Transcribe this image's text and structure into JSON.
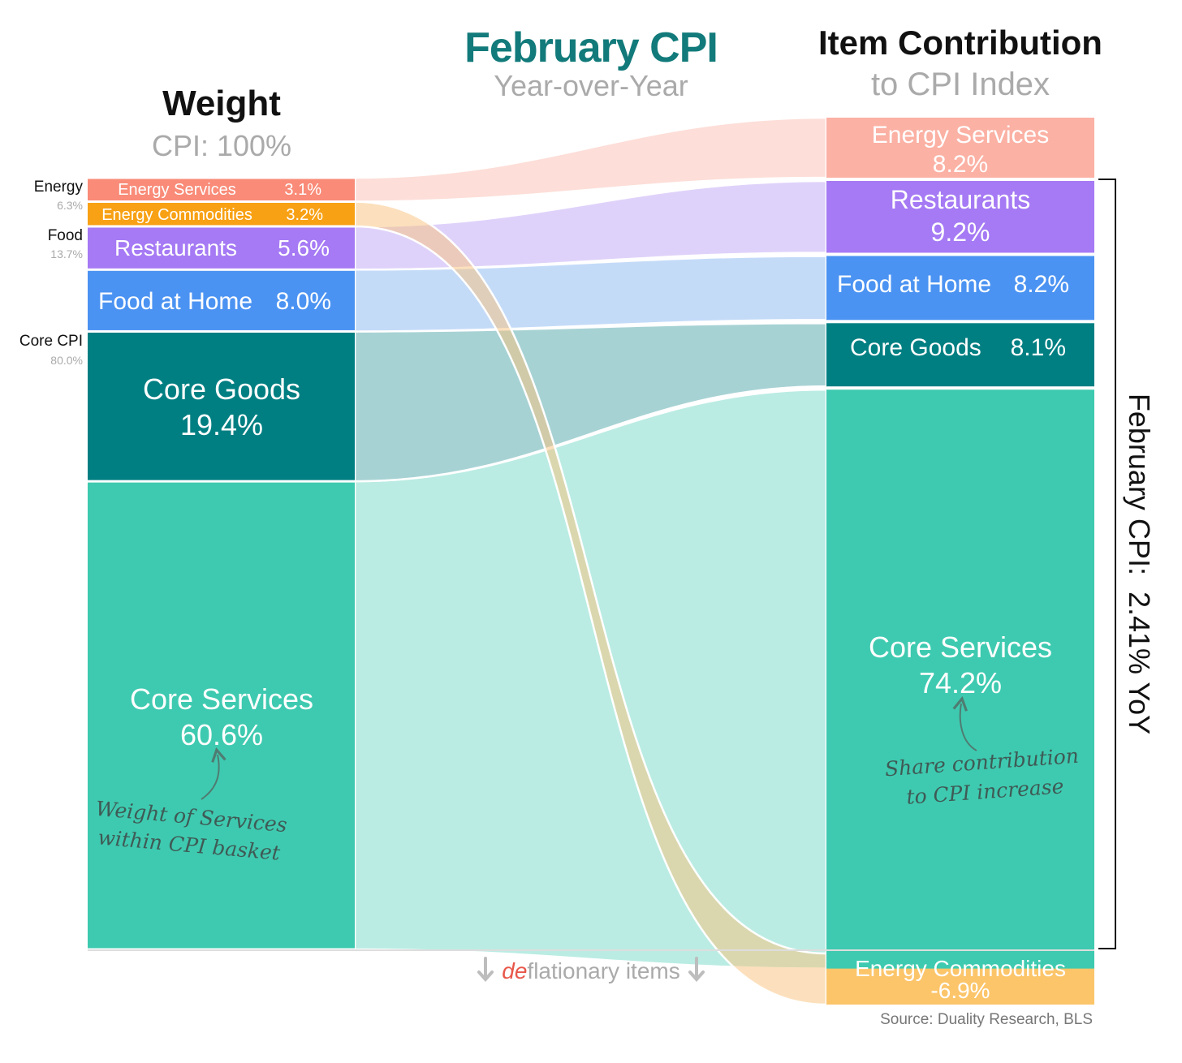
{
  "header": {
    "title": "February CPI",
    "subtitle": "Year-over-Year",
    "left_title": "Weight",
    "left_subtitle": "CPI: 100%",
    "right_title": "Item Contribution",
    "right_subtitle": "to CPI Index"
  },
  "groups": [
    {
      "key": "energy",
      "label": "Energy",
      "value": "6.3%"
    },
    {
      "key": "food",
      "label": "Food",
      "value": "13.7%"
    },
    {
      "key": "core",
      "label": "Core CPI",
      "value": "80.0%"
    }
  ],
  "side_label": "February CPI:  2.41% YoY",
  "deflationary": {
    "prefix": "de",
    "rest": "flationary items"
  },
  "annotations": {
    "left_line1": "Weight of Services",
    "left_line2": "within CPI basket",
    "right_line1": "Share contribution",
    "right_line2": "to CPI increase"
  },
  "source": "Source: Duality Research, BLS",
  "colors": {
    "title": "#127a7a",
    "muted": "#aaaaaa",
    "deflation_red": "#e8574a"
  },
  "chart_data": {
    "type": "sankey",
    "title": "February CPI",
    "subtitle": "Year-over-Year",
    "left_axis": {
      "title": "Weight",
      "total": "CPI: 100%"
    },
    "right_axis": {
      "title": "Item Contribution",
      "subtitle": "to CPI Index"
    },
    "headline_yoy": "2.41%",
    "right_order": [
      "energy_services",
      "restaurants",
      "food_home",
      "core_goods",
      "core_services",
      "energy_commodities"
    ],
    "items": [
      {
        "id": "energy_services",
        "name": "Energy Services",
        "group": "Energy",
        "weight": 3.1,
        "weight_label": "3.1%",
        "contribution": 8.2,
        "contribution_label": "8.2%",
        "color": "#f98b78",
        "right_color": "#fbb1a4",
        "flow_color": "#fdd8d1",
        "flow_opacity": 0.85
      },
      {
        "id": "energy_commodities",
        "name": "Energy Commodities",
        "group": "Energy",
        "weight": 3.2,
        "weight_label": "3.2%",
        "contribution": -6.9,
        "contribution_label": "-6.9%",
        "color": "#f8a114",
        "right_color": "#fcc56a",
        "flow_color": "#f9c27c",
        "flow_opacity": 0.5
      },
      {
        "id": "restaurants",
        "name": "Restaurants",
        "group": "Food",
        "weight": 5.6,
        "weight_label": "5.6%",
        "contribution": 9.2,
        "contribution_label": "9.2%",
        "color": "#a57af4",
        "right_color": "#a57af4",
        "flow_color": "#dccdfa",
        "flow_opacity": 0.9
      },
      {
        "id": "food_home",
        "name": "Food at Home",
        "group": "Food",
        "weight": 8.0,
        "weight_label": "8.0%",
        "contribution": 8.2,
        "contribution_label": "8.2%",
        "color": "#4b93f2",
        "right_color": "#4b93f2",
        "flow_color": "#c1d9f8",
        "flow_opacity": 0.95
      },
      {
        "id": "core_goods",
        "name": "Core Goods",
        "group": "Core CPI",
        "weight": 19.4,
        "weight_label": "19.4%",
        "contribution": 8.1,
        "contribution_label": "8.1%",
        "color": "#007f82",
        "right_color": "#007f82",
        "flow_color": "#a7d2d4",
        "flow_opacity": 1
      },
      {
        "id": "core_services",
        "name": "Core Services",
        "group": "Core CPI",
        "weight": 60.6,
        "weight_label": "60.6%",
        "contribution": 74.2,
        "contribution_label": "74.2%",
        "color": "#3ecab0",
        "right_color": "#3ecab0",
        "flow_color": "#baece3",
        "flow_opacity": 1
      }
    ]
  }
}
